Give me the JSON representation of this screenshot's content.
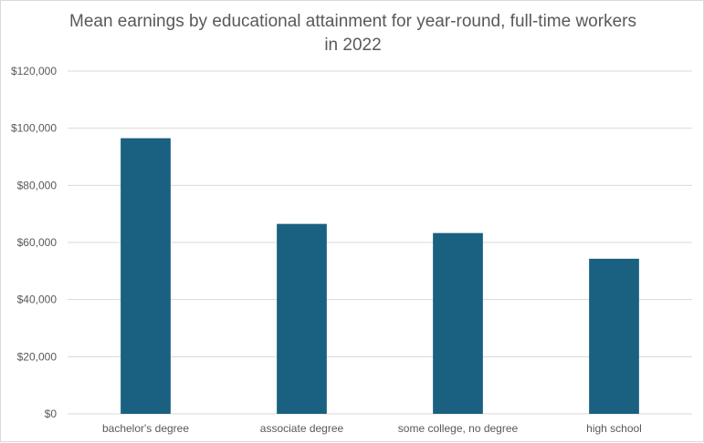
{
  "chart_data": {
    "type": "bar",
    "title_lines": [
      "Mean earnings by educational attainment for year-round, full-time workers",
      "in 2022"
    ],
    "categories": [
      "bachelor's degree",
      "associate degree",
      "some college, no degree",
      "high school"
    ],
    "values": [
      96500,
      66500,
      63300,
      54300
    ],
    "ylim": [
      0,
      120000
    ],
    "yticks": [
      0,
      20000,
      40000,
      60000,
      80000,
      100000,
      120000
    ],
    "ytick_labels": [
      "$0",
      "$20,000",
      "$40,000",
      "$60,000",
      "$80,000",
      "$100,000",
      "$120,000"
    ],
    "xlabel": "",
    "ylabel": "",
    "grid": true,
    "legend": "none",
    "bar_color": "#1a6080",
    "grid_color": "#d9d9d9"
  }
}
